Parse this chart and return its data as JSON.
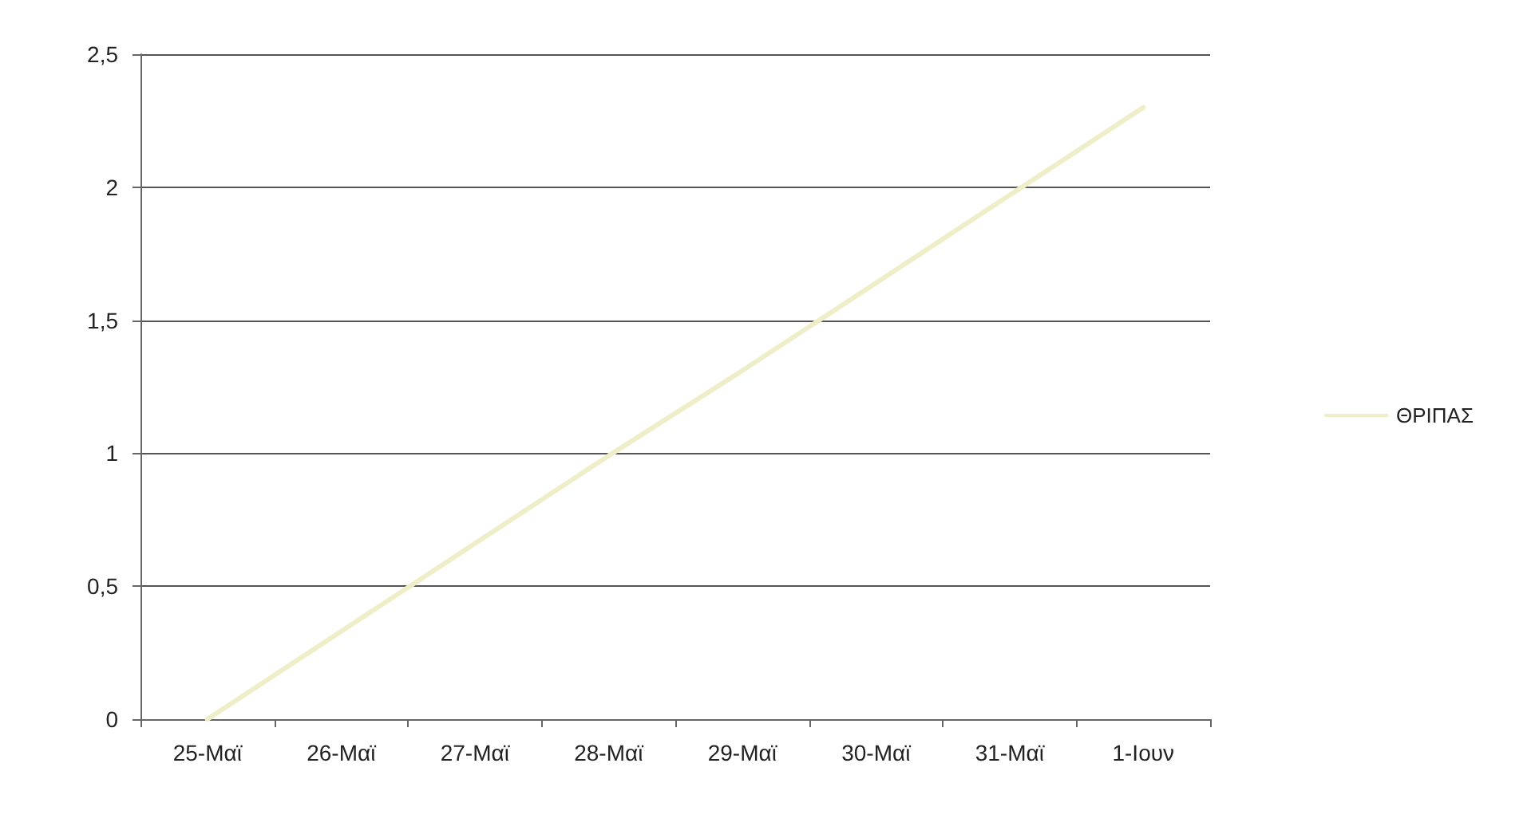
{
  "chart_data": {
    "type": "line",
    "categories": [
      "25-Μαϊ",
      "26-Μαϊ",
      "27-Μαϊ",
      "28-Μαϊ",
      "29-Μαϊ",
      "30-Μαϊ",
      "31-Μαϊ",
      "1-Ιουν"
    ],
    "series": [
      {
        "name": "ΘΡΙΠΑΣ",
        "color": "#eeeec8",
        "values": [
          0,
          0.33,
          0.66,
          0.99,
          1.31,
          1.64,
          1.97,
          2.3
        ]
      }
    ],
    "ylim": [
      0,
      2.5
    ],
    "yticks": [
      0,
      {
        "value": 0.5,
        "label": "0,5"
      },
      1,
      {
        "value": 1.5,
        "label": "1,5"
      },
      2,
      {
        "value": 2.5,
        "label": "2,5"
      }
    ],
    "grid": "y",
    "legend": "right",
    "marker": "none",
    "line_style": "solid"
  }
}
